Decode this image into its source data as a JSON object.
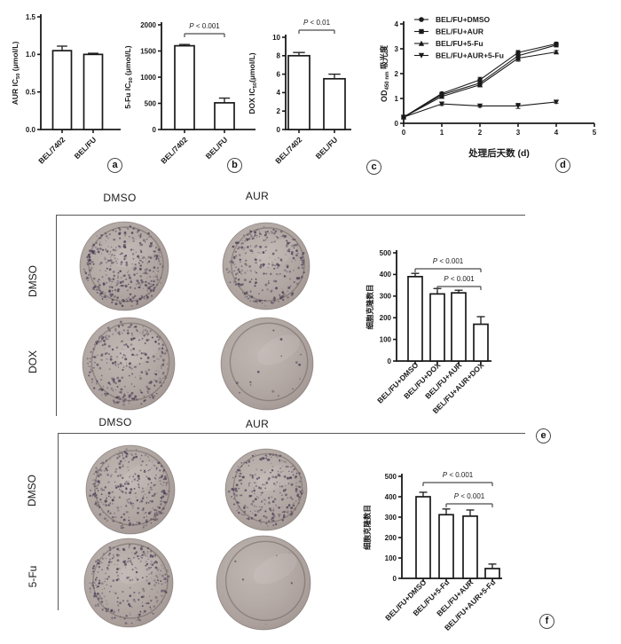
{
  "colors": {
    "ink": "#1a1a1a",
    "bar_fill": "#ffffff",
    "sig_line": "#4a4a4a",
    "border_line": "#565656",
    "plate_base": "#b2a7a3",
    "plate_rim": "#8f8480",
    "colony": "#4e4257",
    "background": "#ffffff"
  },
  "chart_data": [
    {
      "id": "aur_ic50",
      "panel_label": "a",
      "type": "bar",
      "categories": [
        "BEL/7402",
        "BEL/FU"
      ],
      "values": [
        1.05,
        1.0
      ],
      "errors": [
        0.06,
        0.015
      ],
      "ylabel": "AUR IC_{50} (μmol/L)",
      "ylim": [
        0,
        1.5
      ],
      "yticks": [
        0,
        0.5,
        1,
        1.5
      ],
      "ytick_labels": [
        "0.0",
        "0.5",
        "1.0",
        "1.5"
      ],
      "sig": []
    },
    {
      "id": "fu_ic50",
      "panel_label": "b",
      "type": "bar",
      "categories": [
        "BEL/7402",
        "BEL/FU"
      ],
      "values": [
        1600,
        510
      ],
      "errors": [
        25,
        90
      ],
      "ylabel": "5-Fu IC_{50} (μmol/L)",
      "ylim": [
        0,
        2000
      ],
      "yticks": [
        0,
        500,
        1000,
        1500,
        2000
      ],
      "ytick_labels": [
        "0",
        "500",
        "1000",
        "1500",
        "2000"
      ],
      "sig": [
        {
          "from": 0,
          "to": 1,
          "label": "P < 0.001"
        }
      ]
    },
    {
      "id": "dox_ic50",
      "panel_label": "c",
      "type": "bar",
      "categories": [
        "BEL/7402",
        "BEL/FU"
      ],
      "values": [
        8.0,
        5.5
      ],
      "errors": [
        0.35,
        0.5
      ],
      "ylabel": "DOX IC_{50}(μmol/L)",
      "ylim": [
        0,
        10
      ],
      "yticks": [
        0,
        2,
        4,
        6,
        8,
        10
      ],
      "ytick_labels": [
        "0",
        "2",
        "4",
        "6",
        "8",
        "10"
      ],
      "sig": [
        {
          "from": 0,
          "to": 1,
          "label": "P < 0.01"
        }
      ]
    },
    {
      "id": "cck8_growth",
      "panel_label": "d",
      "type": "line",
      "xlabel": "处理后天数 (d)",
      "ylabel": "OD_{450 nm} 吸光度",
      "xlim": [
        0,
        5
      ],
      "ylim": [
        0,
        4
      ],
      "xticks": [
        0,
        1,
        2,
        3,
        4,
        5
      ],
      "yticks": [
        0,
        1,
        2,
        3,
        4
      ],
      "x": [
        0,
        1,
        2,
        3,
        4
      ],
      "legend_position": "top-left",
      "series": [
        {
          "name": "BEL/FU+DMSO",
          "marker": "circle",
          "values": [
            0.25,
            1.2,
            1.75,
            2.85,
            3.2
          ],
          "errors": [
            0.02,
            0.05,
            0.1,
            0.08,
            0.06
          ]
        },
        {
          "name": "BEL/FU+AUR",
          "marker": "square",
          "values": [
            0.25,
            1.15,
            1.62,
            2.72,
            3.15
          ],
          "errors": [
            0.02,
            0.05,
            0.08,
            0.1,
            0.06
          ]
        },
        {
          "name": "BEL/FU+5-Fu",
          "marker": "triangle-up",
          "values": [
            0.25,
            1.08,
            1.55,
            2.62,
            2.87
          ],
          "errors": [
            0.02,
            0.05,
            0.08,
            0.12,
            0.06
          ]
        },
        {
          "name": "BEL/FU+AUR+5-Fu",
          "marker": "triangle-down",
          "values": [
            0.25,
            0.78,
            0.7,
            0.7,
            0.86
          ],
          "errors": [
            0.02,
            0.06,
            0.05,
            0.1,
            0.05
          ]
        }
      ]
    },
    {
      "id": "colony_count_dox",
      "panel_label": "e",
      "type": "bar",
      "categories": [
        "BEL/FU+DMSO",
        "BEL/FU+DOX",
        "BEL/FU+AUR",
        "BEL/FU+AUR+DOX"
      ],
      "values": [
        390,
        310,
        315,
        170
      ],
      "errors": [
        15,
        25,
        12,
        35
      ],
      "ylabel": "细胞克隆数目",
      "ylim": [
        0,
        500
      ],
      "yticks": [
        0,
        100,
        200,
        300,
        400,
        500
      ],
      "ytick_labels": [
        "0",
        "100",
        "200",
        "300",
        "400",
        "500"
      ],
      "sig": [
        {
          "from": 0,
          "to": 3,
          "label": "P < 0.001"
        },
        {
          "from": 1,
          "to": 3,
          "label": "P < 0.001"
        }
      ]
    },
    {
      "id": "colony_count_5fu",
      "panel_label": "f",
      "type": "bar",
      "categories": [
        "BEL/FU+DMSO",
        "BEL/FU+5-Fu",
        "BEL/FU+AUR",
        "BEL/FU+AUR+5-Fu"
      ],
      "values": [
        400,
        312,
        305,
        48
      ],
      "errors": [
        22,
        28,
        30,
        22
      ],
      "ylabel": "细胞克隆数目",
      "ylim": [
        0,
        500
      ],
      "yticks": [
        0,
        100,
        200,
        300,
        400,
        500
      ],
      "ytick_labels": [
        "0",
        "100",
        "200",
        "300",
        "400",
        "500"
      ],
      "sig": [
        {
          "from": 0,
          "to": 3,
          "label": "P < 0.001"
        },
        {
          "from": 1,
          "to": 3,
          "label": "P < 0.001"
        }
      ]
    }
  ],
  "sections": [
    {
      "panel_label": "e",
      "col_labels": [
        "DMSO",
        "AUR"
      ],
      "row_labels": [
        "DMSO",
        "DOX"
      ],
      "plates": [
        {
          "col": "DMSO",
          "row": "DMSO",
          "colony_density": 420
        },
        {
          "col": "AUR",
          "row": "DMSO",
          "colony_density": 300
        },
        {
          "col": "DMSO",
          "row": "DOX",
          "colony_density": 330
        },
        {
          "col": "AUR",
          "row": "DOX",
          "colony_density": 15
        }
      ]
    },
    {
      "panel_label": "f",
      "col_labels": [
        "DMSO",
        "AUR"
      ],
      "row_labels": [
        "DMSO",
        "5-Fu"
      ],
      "plates": [
        {
          "col": "DMSO",
          "row": "DMSO",
          "colony_density": 360
        },
        {
          "col": "AUR",
          "row": "DMSO",
          "colony_density": 280
        },
        {
          "col": "DMSO",
          "row": "5-Fu",
          "colony_density": 300
        },
        {
          "col": "AUR",
          "row": "5-Fu",
          "colony_density": 6
        }
      ]
    }
  ]
}
